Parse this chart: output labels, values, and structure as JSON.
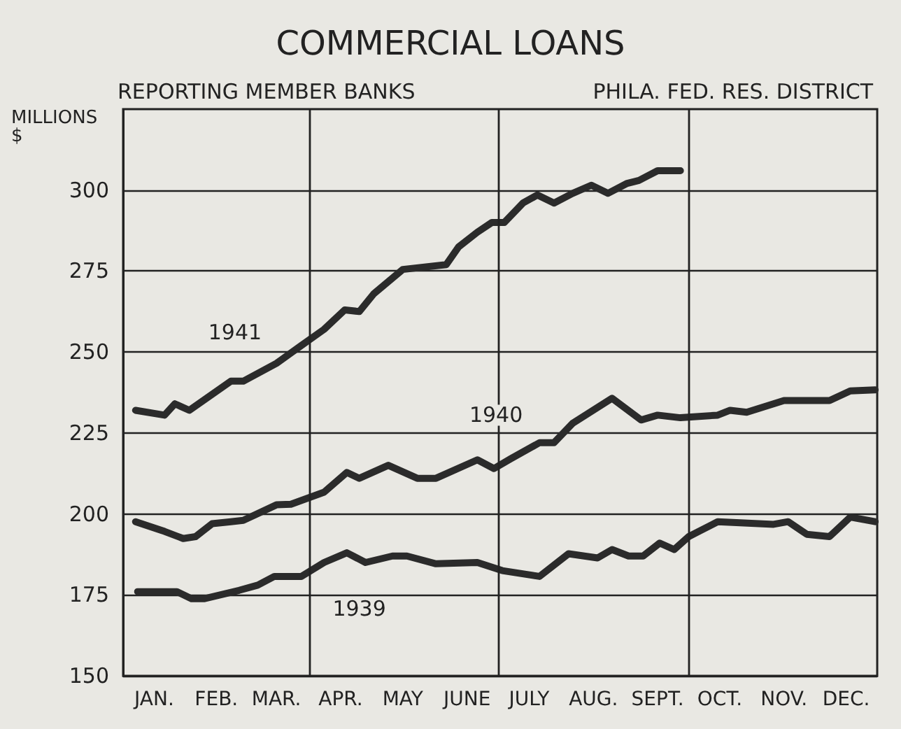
{
  "chart_data": {
    "type": "line",
    "title": "COMMERCIAL LOANS",
    "subtitle": "REPORTING MEMBER BANKS",
    "ylabel": "MILLIONS\n$",
    "annotations": [
      "PHILA. FED. RES. DISTRICT",
      {
        "text": "1941",
        "x": "--02-24",
        "y": 256
      },
      {
        "text": "1940",
        "x": "--06-30",
        "y": 230.5
      },
      {
        "text": "1939",
        "x": "--04-25",
        "y": 170.8
      }
    ],
    "xlim": [
      "--01-01",
      "--12-31"
    ],
    "xticks": [
      {
        "value": "--01-16",
        "label": "JAN."
      },
      {
        "value": "--02-15",
        "label": "FEB."
      },
      {
        "value": "--03-16",
        "label": "MAR."
      },
      {
        "value": "--04-16",
        "label": "APR."
      },
      {
        "value": "--05-16",
        "label": "MAY"
      },
      {
        "value": "--06-16",
        "label": "JUNE"
      },
      {
        "value": "--07-16",
        "label": "JULY"
      },
      {
        "value": "--08-16",
        "label": "AUG."
      },
      {
        "value": "--09-16",
        "label": "SEPT."
      },
      {
        "value": "--10-16",
        "label": "OCT."
      },
      {
        "value": "--11-16",
        "label": "NOV."
      },
      {
        "value": "--12-16",
        "label": "DEC."
      }
    ],
    "ylim": [
      150,
      325
    ],
    "yticks": [
      150,
      175,
      200,
      225,
      250,
      275,
      300
    ],
    "grid": "y",
    "marker": "none",
    "line_style": "solid",
    "ref_lines": [
      {
        "axis": "x",
        "value": "--04-01",
        "label": null
      },
      {
        "axis": "x",
        "value": "--07-01",
        "label": null
      },
      {
        "axis": "x",
        "value": "--10-01",
        "label": null
      }
    ],
    "series": [
      {
        "color": "#2b2b2b",
        "x": [
          "--01-07",
          "--01-21",
          "--01-26",
          "--02-02",
          "--02-22",
          "--02-28",
          "--03-16",
          "--03-28",
          "--04-08",
          "--04-18",
          "--04-25",
          "--05-02",
          "--05-16",
          "--06-06",
          "--06-12",
          "--06-21",
          "--06-28",
          "--07-04",
          "--07-13",
          "--07-20",
          "--07-28",
          "--08-06",
          "--08-15",
          "--08-23",
          "--09-01",
          "--09-07",
          "--09-16",
          "--09-27"
        ],
        "values": [
          232,
          230.5,
          234,
          232,
          241,
          241,
          246.5,
          252,
          257,
          263,
          262.5,
          268,
          275.5,
          277,
          282.5,
          287,
          290,
          290,
          296,
          298.5,
          296,
          299,
          301.5,
          299,
          302,
          303,
          306,
          306
        ]
      },
      {
        "color": "#2b2b2b",
        "x": [
          "--01-07",
          "--01-21",
          "--01-30",
          "--02-05",
          "--02-13",
          "--02-22",
          "--02-28",
          "--03-16",
          "--03-23",
          "--04-08",
          "--04-19",
          "--04-25",
          "--05-09",
          "--05-23",
          "--06-01",
          "--06-21",
          "--06-29",
          "--07-07",
          "--07-21",
          "--07-28",
          "--08-06",
          "--08-25",
          "--09-08",
          "--09-16",
          "--09-27",
          "--10-15",
          "--10-21",
          "--10-29",
          "--11-16",
          "--12-08",
          "--12-18",
          "--12-30"
        ],
        "values": [
          197.6,
          194.6,
          192.4,
          193,
          197,
          197.6,
          198,
          202.8,
          203,
          206.7,
          212.8,
          211,
          215,
          211,
          211,
          216.7,
          214,
          217,
          222,
          222,
          228,
          235.7,
          229,
          230.5,
          229.7,
          230.5,
          232,
          231.4,
          235,
          235,
          238,
          238.3
        ]
      },
      {
        "color": "#2b2b2b",
        "x": [
          "--01-08",
          "--01-27",
          "--02-03",
          "--02-09",
          "--02-26",
          "--03-07",
          "--03-15",
          "--03-28",
          "--04-08",
          "--04-19",
          "--04-28",
          "--05-11",
          "--05-18",
          "--06-01",
          "--06-21",
          "--07-03",
          "--07-21",
          "--08-04",
          "--08-18",
          "--08-25",
          "--09-02",
          "--09-09",
          "--09-17",
          "--09-24",
          "--10-01",
          "--10-15",
          "--11-11",
          "--11-18",
          "--11-27",
          "--12-08",
          "--12-18",
          "--12-30"
        ],
        "values": [
          176,
          176,
          173.8,
          173.8,
          176.4,
          178,
          180.7,
          180.7,
          185,
          188,
          185,
          187,
          187,
          184.6,
          185,
          182.5,
          180.7,
          187.7,
          186.4,
          189,
          187,
          187,
          191,
          189,
          193,
          197.6,
          196.8,
          197.6,
          193.7,
          193,
          199,
          197.6
        ]
      }
    ]
  }
}
